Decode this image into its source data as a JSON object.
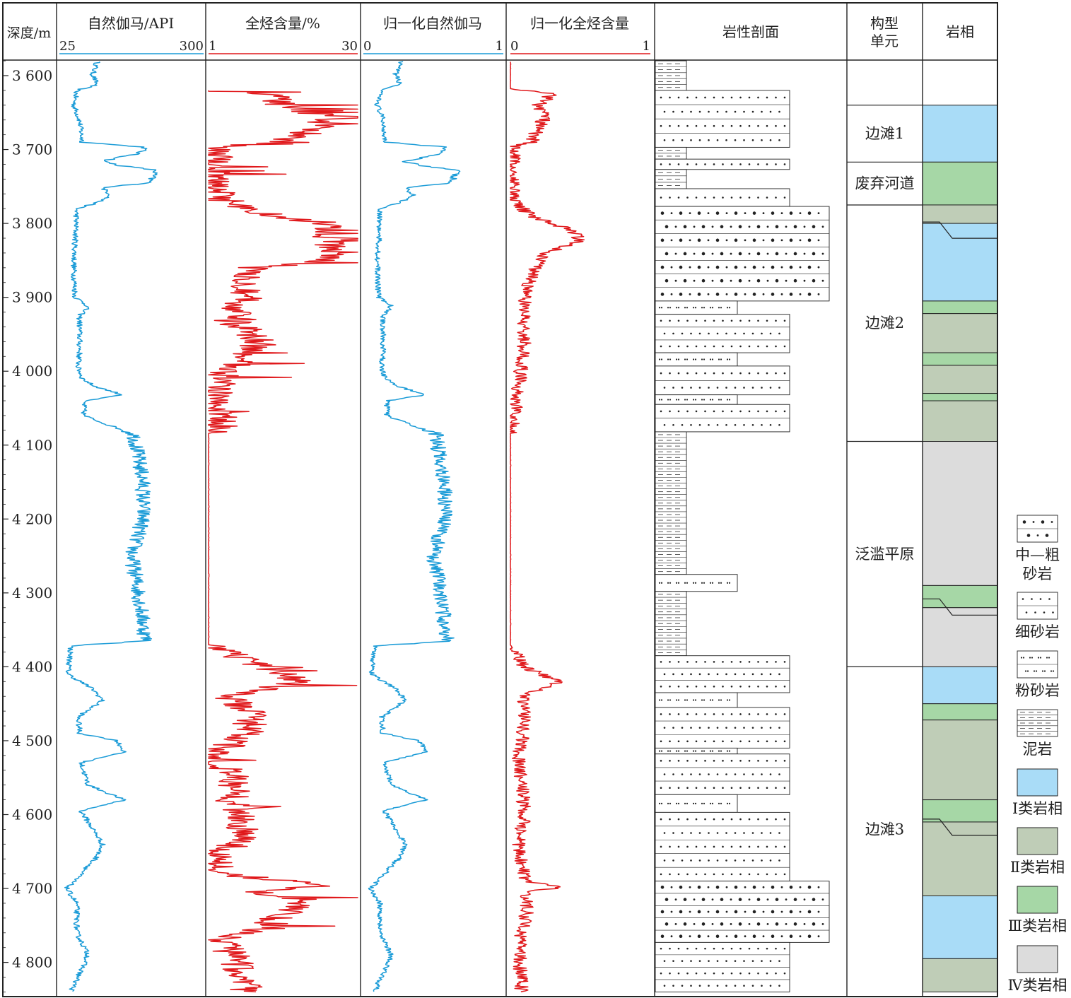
{
  "headers": {
    "depth": "深度/m",
    "gr": "自然伽马/API",
    "tg": "全烃含量/%",
    "ngr": "归一化自然伽马",
    "ntg": "归一化全烃含量",
    "lith": "岩性剖面",
    "unit_line1": "构型",
    "unit_line2": "单元",
    "facies": "岩相"
  },
  "scales": {
    "gr_min": "25",
    "gr_max": "300",
    "tg_min": "1",
    "tg_max": "30",
    "ngr_min": "0",
    "ngr_max": "1",
    "ntg_min": "0",
    "ntg_max": "1"
  },
  "depth_ticks": [
    "3 600",
    "3 700",
    "3 800",
    "3 900",
    "4 000",
    "4 100",
    "4 200",
    "4 300",
    "4 400",
    "4 500",
    "4 600",
    "4 700",
    "4 800"
  ],
  "units": [
    {
      "label": "边滩1",
      "top": 3640,
      "bottom": 3717
    },
    {
      "label": "废弃河道",
      "top": 3717,
      "bottom": 3775
    },
    {
      "label": "边滩2",
      "top": 3775,
      "bottom": 4095
    },
    {
      "label": "泛滥平原",
      "top": 4095,
      "bottom": 4400
    },
    {
      "label": "边滩3",
      "top": 4400,
      "bottom": 4840
    }
  ],
  "facies_intervals": [
    {
      "top": 3640,
      "bottom": 3717,
      "class": "I"
    },
    {
      "top": 3717,
      "bottom": 3775,
      "class": "III"
    },
    {
      "top": 3775,
      "bottom": 3800,
      "class": "II"
    },
    {
      "top": 3800,
      "bottom": 3905,
      "class": "I"
    },
    {
      "top": 3905,
      "bottom": 3922,
      "class": "III"
    },
    {
      "top": 3922,
      "bottom": 3975,
      "class": "II"
    },
    {
      "top": 3975,
      "bottom": 3992,
      "class": "III"
    },
    {
      "top": 3992,
      "bottom": 4030,
      "class": "II"
    },
    {
      "top": 4030,
      "bottom": 4040,
      "class": "III"
    },
    {
      "top": 4040,
      "bottom": 4095,
      "class": "II"
    },
    {
      "top": 4095,
      "bottom": 4290,
      "class": "IV"
    },
    {
      "top": 4290,
      "bottom": 4320,
      "class": "III"
    },
    {
      "top": 4320,
      "bottom": 4400,
      "class": "IV"
    },
    {
      "top": 4400,
      "bottom": 4450,
      "class": "I"
    },
    {
      "top": 4450,
      "bottom": 4472,
      "class": "III"
    },
    {
      "top": 4472,
      "bottom": 4580,
      "class": "II"
    },
    {
      "top": 4580,
      "bottom": 4610,
      "class": "III"
    },
    {
      "top": 4610,
      "bottom": 4710,
      "class": "II"
    },
    {
      "top": 4710,
      "bottom": 4795,
      "class": "I"
    },
    {
      "top": 4795,
      "bottom": 4840,
      "class": "II"
    }
  ],
  "lithology_intervals": [
    {
      "top": 3578,
      "bottom": 3620,
      "type": "mud"
    },
    {
      "top": 3620,
      "bottom": 3697,
      "type": "fine"
    },
    {
      "top": 3697,
      "bottom": 3713,
      "type": "mud"
    },
    {
      "top": 3713,
      "bottom": 3727,
      "type": "fine"
    },
    {
      "top": 3727,
      "bottom": 3753,
      "type": "mud"
    },
    {
      "top": 3753,
      "bottom": 3777,
      "type": "fine"
    },
    {
      "top": 3777,
      "bottom": 3905,
      "type": "coarse"
    },
    {
      "top": 3905,
      "bottom": 3923,
      "type": "silt"
    },
    {
      "top": 3923,
      "bottom": 3975,
      "type": "fine"
    },
    {
      "top": 3975,
      "bottom": 3993,
      "type": "silt"
    },
    {
      "top": 3993,
      "bottom": 4032,
      "type": "fine"
    },
    {
      "top": 4032,
      "bottom": 4045,
      "type": "silt"
    },
    {
      "top": 4045,
      "bottom": 4082,
      "type": "fine"
    },
    {
      "top": 4082,
      "bottom": 4275,
      "type": "mud"
    },
    {
      "top": 4275,
      "bottom": 4298,
      "type": "silt"
    },
    {
      "top": 4298,
      "bottom": 4385,
      "type": "mud"
    },
    {
      "top": 4385,
      "bottom": 4435,
      "type": "fine"
    },
    {
      "top": 4435,
      "bottom": 4455,
      "type": "silt"
    },
    {
      "top": 4455,
      "bottom": 4510,
      "type": "fine"
    },
    {
      "top": 4510,
      "bottom": 4518,
      "type": "silt"
    },
    {
      "top": 4518,
      "bottom": 4573,
      "type": "fine"
    },
    {
      "top": 4573,
      "bottom": 4597,
      "type": "silt"
    },
    {
      "top": 4597,
      "bottom": 4690,
      "type": "fine"
    },
    {
      "top": 4690,
      "bottom": 4773,
      "type": "coarse"
    },
    {
      "top": 4773,
      "bottom": 4840,
      "type": "fine"
    }
  ],
  "legend": [
    {
      "type": "coarse",
      "label1": "中—粗",
      "label2": "砂岩"
    },
    {
      "type": "fine",
      "label1": "细砂岩",
      "label2": ""
    },
    {
      "type": "silt",
      "label1": "粉砂岩",
      "label2": ""
    },
    {
      "type": "mud",
      "label1": "泥岩",
      "label2": ""
    },
    {
      "type": "I",
      "label1": "Ⅰ类岩相",
      "label2": ""
    },
    {
      "type": "II",
      "label1": "Ⅱ类岩相",
      "label2": ""
    },
    {
      "type": "III",
      "label1": "Ⅲ类岩相",
      "label2": ""
    },
    {
      "type": "IV",
      "label1": "Ⅳ类岩相",
      "label2": ""
    }
  ],
  "colors": {
    "gr_curve": "#1a9bd7",
    "tg_curve": "#e0181b",
    "facies_I": "#a9dcf7",
    "facies_II": "#bfcdb7",
    "facies_III": "#a6d7a6",
    "facies_IV": "#dcdcdc"
  }
}
